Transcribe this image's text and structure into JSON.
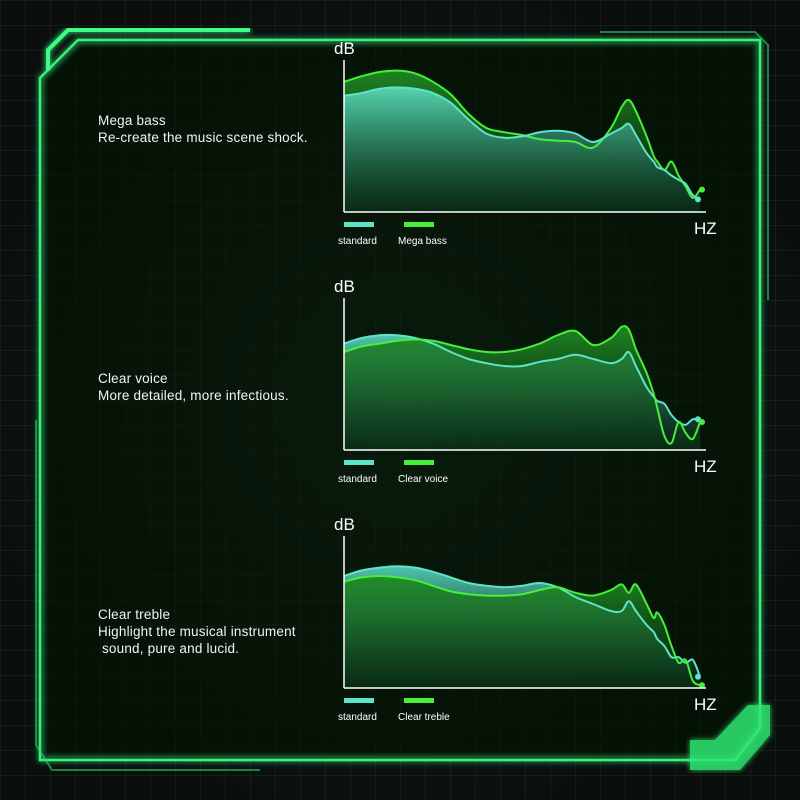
{
  "colors": {
    "standard": "#5ee3c9",
    "variant": "#45f03a",
    "frame_glow": "#36f27a",
    "background": "#0c1411"
  },
  "chart_data": [
    {
      "type": "area",
      "description": [
        "Mega bass",
        "Re-create the music scene shock."
      ],
      "ylabel": "dB",
      "xlabel": "HZ",
      "ylim": [
        0,
        100
      ],
      "x": [
        0,
        5,
        10,
        15,
        20,
        25,
        30,
        35,
        40,
        45,
        50,
        55,
        60,
        65,
        70,
        75,
        78,
        80,
        82,
        85,
        87,
        88,
        90,
        92,
        94,
        96,
        98,
        100
      ],
      "series": [
        {
          "name": "standard",
          "values": [
            83,
            85,
            88,
            89,
            88,
            85,
            78,
            66,
            56,
            53,
            54,
            57,
            58,
            56,
            50,
            56,
            60,
            63,
            55,
            42,
            36,
            32,
            30,
            26,
            23,
            20,
            12,
            9
          ]
        },
        {
          "name": "Mega bass",
          "values": [
            93,
            97,
            100,
            101,
            99,
            93,
            84,
            70,
            60,
            57,
            55,
            52,
            51,
            50,
            46,
            60,
            75,
            80,
            72,
            54,
            40,
            36,
            30,
            36,
            26,
            18,
            10,
            16
          ]
        }
      ],
      "legend": [
        "standard",
        "Mega bass"
      ]
    },
    {
      "type": "area",
      "description": [
        "Clear voice",
        "More detailed, more infectious."
      ],
      "ylabel": "dB",
      "xlabel": "HZ",
      "ylim": [
        0,
        100
      ],
      "x": [
        0,
        5,
        10,
        15,
        20,
        25,
        30,
        35,
        40,
        45,
        50,
        55,
        60,
        65,
        70,
        75,
        78,
        80,
        82,
        85,
        87,
        88,
        90,
        92,
        94,
        96,
        98,
        100
      ],
      "series": [
        {
          "name": "standard",
          "values": [
            76,
            80,
            82,
            82,
            80,
            76,
            70,
            65,
            62,
            60,
            60,
            63,
            65,
            68,
            65,
            62,
            65,
            70,
            60,
            45,
            38,
            35,
            33,
            25,
            20,
            18,
            22,
            22
          ]
        },
        {
          "name": "Clear voice",
          "values": [
            70,
            74,
            76,
            78,
            79,
            78,
            75,
            72,
            70,
            70,
            72,
            76,
            82,
            85,
            75,
            80,
            88,
            86,
            72,
            55,
            40,
            30,
            10,
            5,
            20,
            12,
            8,
            20
          ]
        }
      ],
      "legend": [
        "standard",
        "Clear voice"
      ]
    },
    {
      "type": "area",
      "description": [
        "Clear treble",
        "Highlight the musical instrument",
        " sound, pure and lucid."
      ],
      "ylabel": "dB",
      "xlabel": "HZ",
      "ylim": [
        0,
        100
      ],
      "x": [
        0,
        5,
        10,
        15,
        20,
        25,
        30,
        35,
        40,
        45,
        50,
        55,
        60,
        65,
        70,
        75,
        78,
        80,
        82,
        85,
        87,
        88,
        90,
        92,
        94,
        96,
        98,
        100
      ],
      "series": [
        {
          "name": "standard",
          "values": [
            80,
            84,
            86,
            87,
            86,
            83,
            79,
            75,
            73,
            72,
            73,
            75,
            72,
            65,
            60,
            55,
            55,
            62,
            55,
            45,
            40,
            35,
            30,
            22,
            22,
            18,
            20,
            8
          ]
        },
        {
          "name": "Clear treble",
          "values": [
            76,
            79,
            80,
            79,
            77,
            73,
            69,
            67,
            66,
            66,
            67,
            70,
            72,
            68,
            66,
            70,
            74,
            68,
            74,
            60,
            50,
            54,
            45,
            30,
            18,
            20,
            5,
            2
          ]
        }
      ],
      "legend": [
        "standard",
        "Clear treble"
      ]
    }
  ]
}
